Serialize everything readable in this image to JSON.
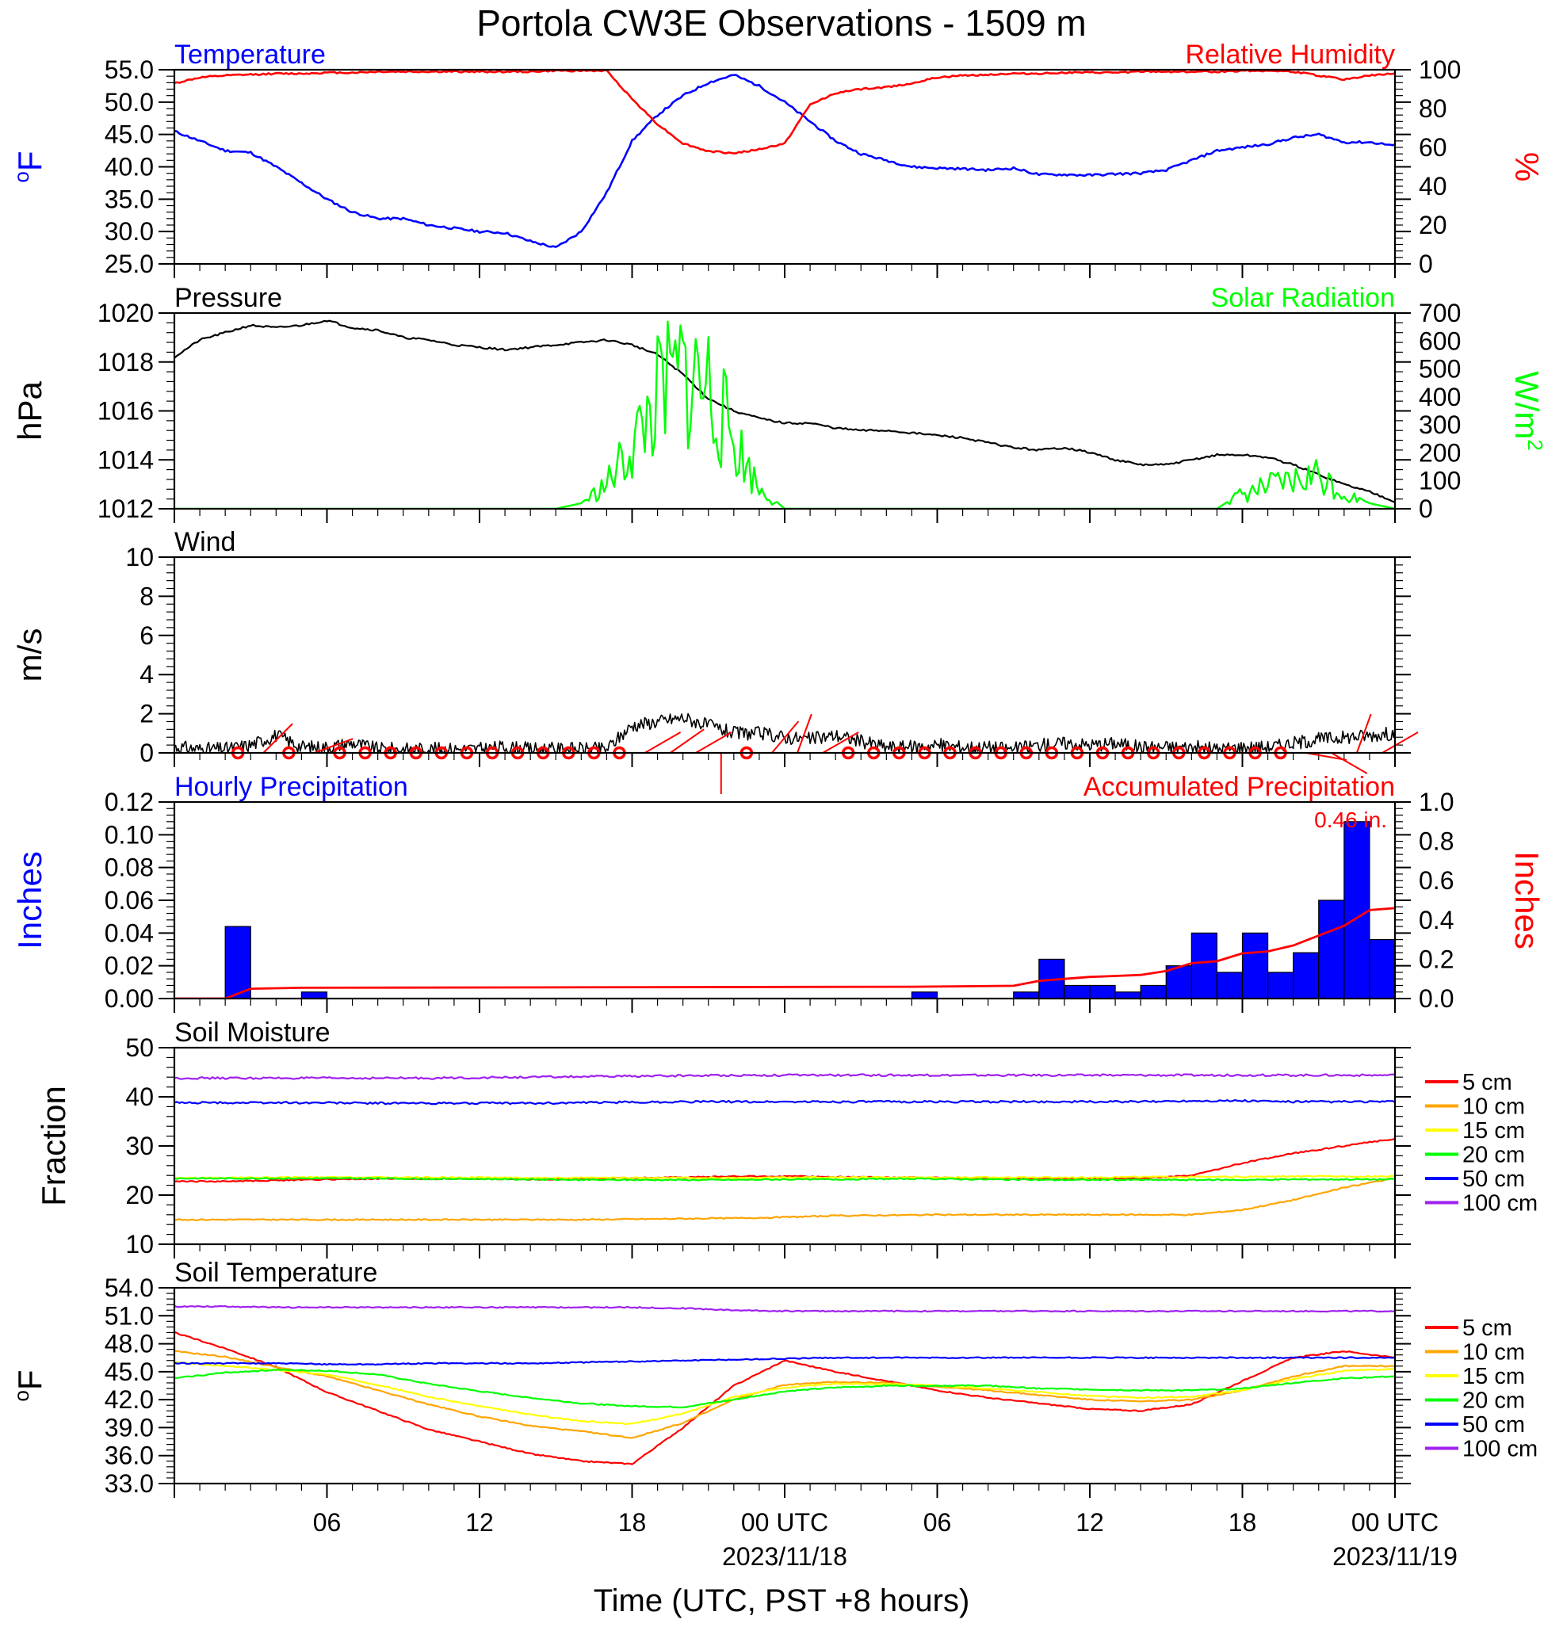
{
  "title": "Portola CW3E Observations - 1509 m",
  "xlabel": "Time (UTC, PST +8 hours)",
  "x_ticks": [
    "06",
    "12",
    "18",
    "00 UTC",
    "06",
    "12",
    "18",
    "00 UTC"
  ],
  "x_dates": [
    "2023/11/18",
    "2023/11/19"
  ],
  "colors": {
    "temperature": "#0000ff",
    "humidity": "#ff0000",
    "pressure": "#000000",
    "solar": "#00ff00",
    "wind": "#000000",
    "barb": "#ff0000",
    "hourly": "#0000ff",
    "accum": "#ff0000"
  },
  "depth_colors": [
    "#ff0000",
    "#ffa500",
    "#ffff00",
    "#00ff00",
    "#0000ff",
    "#a020f0"
  ],
  "chart_data": [
    {
      "type": "line",
      "title_left": "Temperature",
      "title_right": "Relative Humidity",
      "ylabel_left": "oF",
      "ylabel_right": "%",
      "ylim_left": [
        25,
        55
      ],
      "ylim_right": [
        0,
        100
      ],
      "yticks_left": [
        "25.0",
        "30.0",
        "35.0",
        "40.0",
        "45.0",
        "50.0",
        "55.0"
      ],
      "yticks_right": [
        "0",
        "20",
        "40",
        "60",
        "80",
        "100"
      ],
      "x_hours": [
        0,
        1,
        2,
        3,
        4,
        5,
        6,
        7,
        8,
        9,
        10,
        11,
        12,
        13,
        14,
        15,
        16,
        17,
        18,
        19,
        20,
        21,
        22,
        23,
        24,
        25,
        26,
        27,
        28,
        29,
        30,
        31,
        32,
        33,
        34,
        35,
        36,
        37,
        38,
        39,
        40,
        41,
        42,
        43,
        44,
        45,
        46,
        47,
        48
      ],
      "series": [
        {
          "name": "Temperature",
          "axis": "left",
          "values": [
            45.5,
            44,
            42.5,
            42.2,
            40,
            37.5,
            35,
            33,
            32,
            32,
            31,
            30.5,
            30,
            29.8,
            28.5,
            27.5,
            30,
            36,
            44,
            48,
            51,
            53,
            54.2,
            52.5,
            50,
            47,
            44,
            42,
            41,
            40,
            39.8,
            39.7,
            39.5,
            39.8,
            38.8,
            38.8,
            38.7,
            38.9,
            39,
            39.5,
            41,
            42.5,
            43,
            43.5,
            44.5,
            45,
            43.8,
            43.8,
            43.3
          ]
        },
        {
          "name": "Relative Humidity",
          "axis": "right",
          "values": [
            93,
            96,
            97,
            97.5,
            98,
            98,
            98.5,
            98.5,
            99,
            99,
            99,
            99,
            99,
            99,
            99,
            99.5,
            99.5,
            99.5,
            85,
            72,
            62,
            58,
            57,
            59,
            62,
            82,
            88,
            90,
            91,
            93,
            96,
            97,
            97.5,
            98,
            98,
            98.5,
            98.5,
            98.5,
            99,
            99,
            99,
            99,
            99.5,
            99.5,
            99,
            97,
            95,
            97,
            98
          ]
        }
      ]
    },
    {
      "type": "line",
      "title_left": "Pressure",
      "title_right": "Solar Radiation",
      "ylabel_left": "hPa",
      "ylabel_right": "W/m2",
      "ylim_left": [
        1012,
        1020
      ],
      "ylim_right": [
        0,
        700
      ],
      "yticks_left": [
        "1012",
        "1014",
        "1016",
        "1018",
        "1020"
      ],
      "yticks_right": [
        "0",
        "100",
        "200",
        "300",
        "400",
        "500",
        "600",
        "700"
      ],
      "x_hours": [
        0,
        1,
        2,
        3,
        4,
        5,
        6,
        7,
        8,
        9,
        10,
        11,
        12,
        13,
        14,
        15,
        16,
        17,
        18,
        19,
        20,
        21,
        22,
        23,
        24,
        25,
        26,
        27,
        28,
        29,
        30,
        31,
        32,
        33,
        34,
        35,
        36,
        37,
        38,
        39,
        40,
        41,
        42,
        43,
        44,
        45,
        46,
        47,
        48
      ],
      "series": [
        {
          "name": "Pressure",
          "axis": "left",
          "values": [
            1018.2,
            1018.9,
            1019.2,
            1019.5,
            1019.4,
            1019.5,
            1019.7,
            1019.4,
            1019.3,
            1019,
            1018.9,
            1018.7,
            1018.6,
            1018.5,
            1018.6,
            1018.7,
            1018.8,
            1018.9,
            1018.7,
            1018.3,
            1017.5,
            1016.5,
            1016,
            1015.7,
            1015.5,
            1015.5,
            1015.3,
            1015.2,
            1015.2,
            1015.1,
            1015,
            1014.9,
            1014.7,
            1014.5,
            1014.4,
            1014.5,
            1014.3,
            1014,
            1013.8,
            1013.8,
            1014,
            1014.2,
            1014.2,
            1014.1,
            1013.8,
            1013.4,
            1013,
            1012.7,
            1012.3
          ]
        },
        {
          "name": "Solar Radiation",
          "axis": "right",
          "values": [
            0,
            0,
            0,
            0,
            0,
            0,
            0,
            0,
            0,
            0,
            0,
            0,
            0,
            0,
            0,
            0,
            20,
            100,
            250,
            450,
            550,
            500,
            280,
            80,
            0,
            0,
            0,
            0,
            0,
            0,
            0,
            0,
            0,
            0,
            0,
            0,
            0,
            0,
            0,
            0,
            0,
            0,
            60,
            90,
            110,
            140,
            60,
            20,
            0
          ]
        }
      ]
    },
    {
      "type": "line",
      "title_left": "Wind",
      "ylabel_left": "m/s",
      "ylim_left": [
        0,
        10
      ],
      "yticks_left": [
        "0",
        "2",
        "4",
        "6",
        "8",
        "10"
      ],
      "x_hours": [
        0,
        1,
        2,
        3,
        4,
        5,
        6,
        7,
        8,
        9,
        10,
        11,
        12,
        13,
        14,
        15,
        16,
        17,
        18,
        19,
        20,
        21,
        22,
        23,
        24,
        25,
        26,
        27,
        28,
        29,
        30,
        31,
        32,
        33,
        34,
        35,
        36,
        37,
        38,
        39,
        40,
        41,
        42,
        43,
        44,
        45,
        46,
        47,
        48
      ],
      "series": [
        {
          "name": "Wind",
          "axis": "left",
          "values": [
            0.3,
            0.2,
            0.2,
            0.4,
            0.9,
            0.3,
            0.3,
            0.5,
            0.2,
            0.2,
            0.2,
            0.2,
            0.2,
            0.3,
            0.2,
            0.2,
            0.2,
            0.2,
            1.4,
            1.6,
            1.8,
            1.4,
            1,
            1,
            0.8,
            0.7,
            0.9,
            0.6,
            0.3,
            0.3,
            0.4,
            0.3,
            0.3,
            0.2,
            0.4,
            0.5,
            0.4,
            0.5,
            0.3,
            0.3,
            0.3,
            0.2,
            0.3,
            0.3,
            0.5,
            0.7,
            0.8,
            0.9,
            1
          ]
        }
      ],
      "barb_hours": [
        2,
        3,
        4,
        5,
        6,
        7,
        8,
        9,
        10,
        11,
        12,
        13,
        14,
        15,
        16,
        17,
        18,
        19,
        20,
        21,
        22,
        23,
        24,
        25,
        26,
        27,
        28,
        29,
        30,
        31,
        32,
        33,
        34,
        35,
        36,
        37,
        38,
        39,
        40,
        41,
        42,
        43,
        44,
        45,
        46,
        47
      ],
      "barb_speed": [
        0,
        1.2,
        0,
        0.8,
        0.2,
        0,
        0,
        0,
        0,
        0,
        0.2,
        0,
        0,
        0,
        0,
        0,
        1.2,
        1.4,
        1.4,
        0.5,
        0.2,
        1,
        1.2,
        1.2,
        0,
        0,
        0.2,
        0,
        0,
        0,
        0,
        0.2,
        0,
        0,
        0.2,
        0,
        0,
        0,
        0,
        0,
        0,
        0,
        1,
        1.2,
        1.3,
        1.2
      ],
      "barb_dir": [
        0,
        225,
        0,
        250,
        0,
        0,
        0,
        0,
        0,
        0,
        0,
        0,
        0,
        0,
        0,
        0,
        240,
        235,
        240,
        0,
        0,
        220,
        200,
        240,
        0,
        0,
        0,
        0,
        0,
        0,
        0,
        0,
        0,
        0,
        0,
        0,
        0,
        0,
        0,
        0,
        0,
        0,
        280,
        300,
        200,
        240
      ]
    },
    {
      "type": "bar",
      "title_left": "Hourly Precipitation",
      "title_right": "Accumulated Precipitation",
      "annotation": "0.46 in.",
      "ylabel_left": "Inches",
      "ylabel_right": "Inches",
      "ylim_left": [
        0,
        0.12
      ],
      "ylim_right": [
        0,
        1
      ],
      "yticks_left": [
        "0.00",
        "0.02",
        "0.04",
        "0.06",
        "0.08",
        "0.10",
        "0.12"
      ],
      "yticks_right": [
        "0.0",
        "0.2",
        "0.4",
        "0.6",
        "0.8",
        "1.0"
      ],
      "bar_hours": [
        2,
        5,
        29,
        33,
        34,
        35,
        36,
        37,
        38,
        39,
        40,
        41,
        42,
        43,
        44,
        45,
        46,
        47
      ],
      "hourly": [
        0.044,
        0.004,
        0.004,
        0.004,
        0.024,
        0.008,
        0.008,
        0.004,
        0.008,
        0.02,
        0.04,
        0.016,
        0.04,
        0.016,
        0.028,
        0.06,
        0.108,
        0.036
      ],
      "accum_hours": [
        0,
        2,
        3,
        5,
        29,
        33,
        34,
        35,
        36,
        37,
        38,
        39,
        40,
        41,
        42,
        43,
        44,
        45,
        46,
        47,
        48
      ],
      "accum": [
        0,
        0,
        0.05,
        0.055,
        0.06,
        0.065,
        0.09,
        0.1,
        0.11,
        0.115,
        0.12,
        0.14,
        0.18,
        0.19,
        0.23,
        0.24,
        0.27,
        0.32,
        0.37,
        0.45,
        0.46
      ]
    },
    {
      "type": "line",
      "title_left": "Soil Moisture",
      "ylabel_left": "Fraction",
      "ylim_left": [
        10,
        50
      ],
      "yticks_left": [
        "10",
        "20",
        "30",
        "40",
        "50"
      ],
      "legend": [
        "5 cm",
        "10 cm",
        "15 cm",
        "20 cm",
        "50 cm",
        "100 cm"
      ],
      "x_hours": [
        0,
        2,
        4,
        6,
        8,
        10,
        12,
        14,
        16,
        18,
        20,
        22,
        24,
        26,
        28,
        30,
        32,
        34,
        36,
        38,
        40,
        42,
        44,
        46,
        48
      ],
      "series": [
        {
          "name": "5 cm",
          "values": [
            22.8,
            22.8,
            23,
            23.2,
            23.3,
            23.3,
            23.3,
            23.2,
            23.3,
            23.5,
            23.6,
            23.8,
            23.8,
            23.7,
            23.6,
            23.5,
            23.4,
            23.3,
            23.3,
            23.4,
            24,
            26.5,
            28.5,
            30,
            31.5
          ]
        },
        {
          "name": "10 cm",
          "values": [
            15,
            15,
            15,
            15,
            15,
            15,
            15,
            15,
            15,
            15.1,
            15.2,
            15.3,
            15.5,
            15.8,
            15.9,
            16,
            16,
            16,
            16,
            16,
            16,
            17,
            19,
            21.5,
            23.5
          ]
        },
        {
          "name": "15 cm",
          "values": [
            23.5,
            23.5,
            23.6,
            23.6,
            23.6,
            23.6,
            23.6,
            23.5,
            23.5,
            23.5,
            23.5,
            23.5,
            23.6,
            23.6,
            23.6,
            23.6,
            23.6,
            23.6,
            23.6,
            23.7,
            23.7,
            23.7,
            23.8,
            23.8,
            23.8
          ]
        },
        {
          "name": "20 cm",
          "values": [
            23.4,
            23.4,
            23.4,
            23.4,
            23.4,
            23.3,
            23.3,
            23.2,
            23.1,
            23.1,
            23.1,
            23.1,
            23.2,
            23.2,
            23.3,
            23.3,
            23.2,
            23.1,
            23.1,
            23.1,
            23.1,
            23.1,
            23.2,
            23.2,
            23.2
          ]
        },
        {
          "name": "50 cm",
          "values": [
            38.8,
            38.8,
            38.8,
            38.8,
            38.7,
            38.7,
            38.7,
            38.7,
            38.8,
            38.9,
            39,
            39,
            39,
            39,
            39,
            39,
            39,
            39,
            39,
            39,
            39.2,
            39.2,
            39,
            39,
            39
          ]
        },
        {
          "name": "100 cm",
          "values": [
            43.8,
            43.8,
            43.8,
            43.8,
            43.8,
            43.8,
            43.9,
            44,
            44.1,
            44.2,
            44.3,
            44.4,
            44.4,
            44.4,
            44.4,
            44.4,
            44.4,
            44.4,
            44.4,
            44.4,
            44.4,
            44.4,
            44.4,
            44.4,
            44.4
          ]
        }
      ]
    },
    {
      "type": "line",
      "title_left": "Soil Temperature",
      "ylabel_left": "oF",
      "ylim_left": [
        33,
        54
      ],
      "yticks_left": [
        "33.0",
        "36.0",
        "39.0",
        "42.0",
        "45.0",
        "48.0",
        "51.0",
        "54.0"
      ],
      "legend": [
        "5 cm",
        "10 cm",
        "15 cm",
        "20 cm",
        "50 cm",
        "100 cm"
      ],
      "x_hours": [
        0,
        2,
        4,
        6,
        8,
        10,
        12,
        14,
        16,
        18,
        20,
        22,
        24,
        26,
        28,
        30,
        32,
        34,
        36,
        38,
        40,
        42,
        44,
        46,
        48
      ],
      "series": [
        {
          "name": "5 cm",
          "values": [
            49.2,
            47.5,
            45.5,
            42.8,
            40.8,
            38.8,
            37.5,
            36.2,
            35.4,
            35.1,
            39,
            43.5,
            46.2,
            45,
            44,
            43,
            42.2,
            41.6,
            41,
            40.8,
            41.5,
            44,
            46.5,
            47.2,
            46.5
          ]
        },
        {
          "name": "10 cm",
          "values": [
            47.2,
            46.6,
            45.5,
            44.5,
            43,
            41.5,
            40.2,
            39.2,
            38.6,
            37.9,
            39.5,
            42,
            43.6,
            43.9,
            43.8,
            43.4,
            43,
            42.5,
            42,
            41.8,
            42,
            43,
            44.5,
            45.6,
            45.6
          ]
        },
        {
          "name": "15 cm",
          "values": [
            46,
            45.6,
            45.2,
            44.7,
            43.6,
            42.3,
            41.3,
            40.4,
            39.7,
            39.4,
            40.5,
            42.3,
            43.3,
            43.7,
            43.7,
            43.5,
            43.2,
            42.8,
            42.4,
            42.2,
            42.3,
            43,
            44.2,
            45.1,
            45.3
          ]
        },
        {
          "name": "20 cm",
          "values": [
            44.3,
            44.9,
            45.2,
            45.1,
            44.7,
            43.7,
            42.9,
            42.2,
            41.6,
            41.3,
            41.2,
            42,
            42.9,
            43.3,
            43.5,
            43.5,
            43.5,
            43.2,
            43.1,
            43,
            43,
            43.2,
            43.8,
            44.3,
            44.5
          ]
        },
        {
          "name": "50 cm",
          "values": [
            45.9,
            45.9,
            45.9,
            45.8,
            45.8,
            45.9,
            45.9,
            45.9,
            46,
            46.1,
            46.2,
            46.3,
            46.4,
            46.5,
            46.5,
            46.5,
            46.5,
            46.5,
            46.5,
            46.5,
            46.5,
            46.5,
            46.5,
            46.5,
            46.5
          ]
        },
        {
          "name": "100 cm",
          "values": [
            52,
            52,
            51.9,
            51.9,
            51.9,
            51.9,
            51.9,
            51.9,
            51.9,
            51.9,
            51.8,
            51.6,
            51.5,
            51.5,
            51.5,
            51.5,
            51.5,
            51.5,
            51.5,
            51.5,
            51.5,
            51.5,
            51.5,
            51.5,
            51.5
          ]
        }
      ]
    }
  ]
}
